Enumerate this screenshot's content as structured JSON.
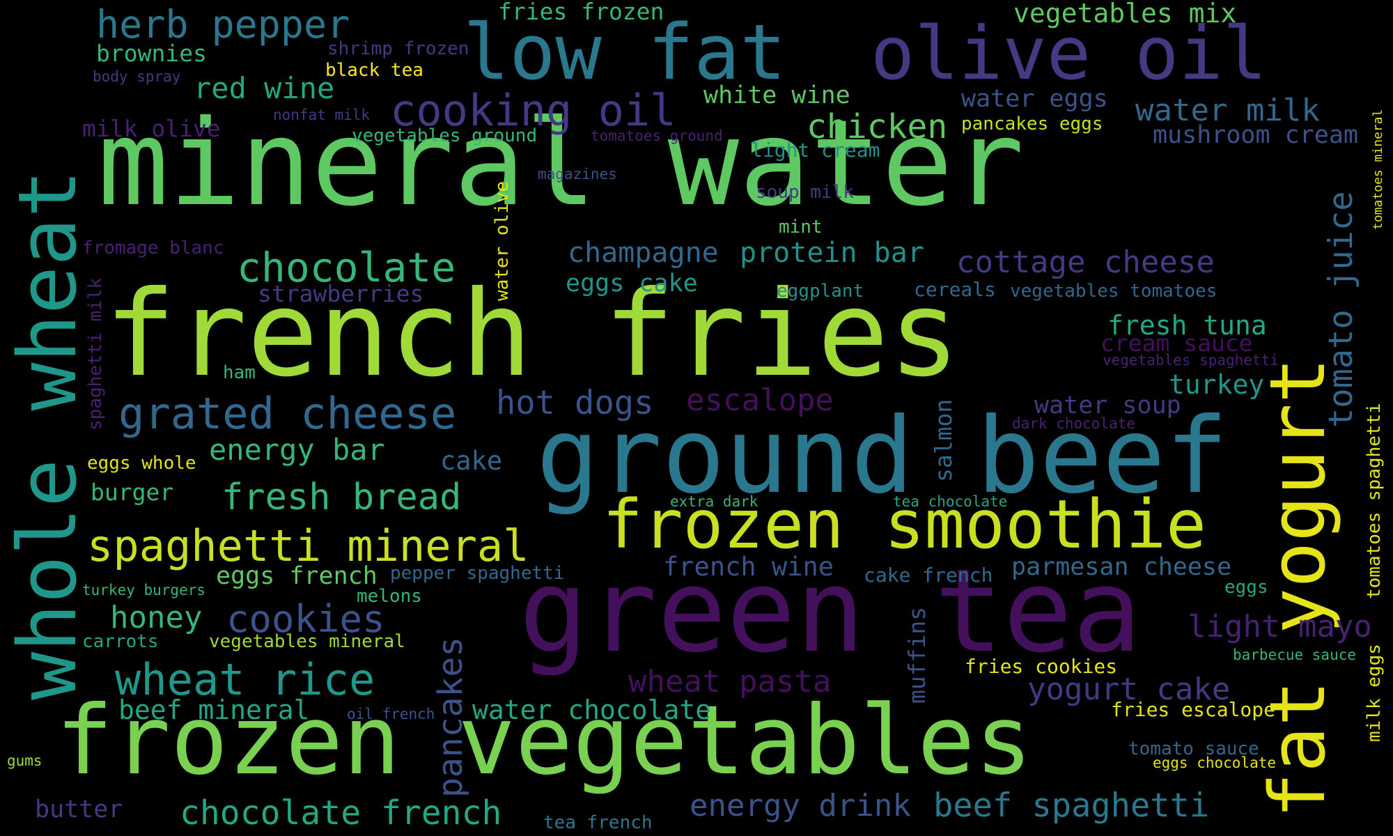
{
  "words": {
    "w1": "mineral water",
    "w2": "french fries",
    "w3": "ground beef",
    "w4": "green tea",
    "w5": "frozen vegetables",
    "w6": "whole wheat",
    "w7": "low fat",
    "w8": "olive oil",
    "w9": "frozen smoothie",
    "w10": "fat yogurt",
    "w11": "cooking oil",
    "w12": "chocolate",
    "w13": "grated cheese",
    "w14": "spaghetti mineral",
    "w15": "herb pepper",
    "w16": "fries frozen",
    "w17": "vegetables mix",
    "w18": "brownies",
    "w19": "shrimp frozen",
    "w20": "black tea",
    "w21": "body spray",
    "w22": "red wine",
    "w23": "white wine",
    "w24": "water eggs",
    "w25": "water milk",
    "w26": "chicken",
    "w27": "pancakes eggs",
    "w28": "nonfat milk",
    "w29": "milk olive",
    "w30": "vegetables ground",
    "w31": "tomatoes ground",
    "w32": "light cream",
    "w33": "mushroom cream",
    "w34": "magazines",
    "w35": "soup milk",
    "w36": "mint",
    "w37": "fromage blanc",
    "w38": "champagne",
    "w39": "protein bar",
    "w40": "cottage cheese",
    "w41": "strawberries",
    "w42": "eggs cake",
    "w43": "eggplant",
    "w44": "cereals",
    "w45": "vegetables tomatoes",
    "w46": "fresh tuna",
    "w47": "cream sauce",
    "w48": "vegetables spaghetti",
    "w49": "ham",
    "w50": "hot dogs",
    "w51": "escalope",
    "w52": "turkey",
    "w53": "water soup",
    "w54": "dark chocolate",
    "w55": "energy bar",
    "w56": "cake",
    "w57": "eggs whole",
    "w58": "burger",
    "w59": "fresh bread",
    "w60": "extra dark",
    "w61": "tea chocolate",
    "w62": "eggs french",
    "w63": "pepper spaghetti",
    "w64": "french wine",
    "w65": "cake french",
    "w66": "parmesan cheese",
    "w67": "turkey burgers",
    "w68": "melons",
    "w69": "eggs",
    "w70": "honey",
    "w71": "cookies",
    "w72": "carrots",
    "w73": "vegetables mineral",
    "w74": "light mayo",
    "w75": "barbecue sauce",
    "w76": "wheat rice",
    "w77": "wheat pasta",
    "w78": "fries cookies",
    "w79": "yogurt cake",
    "w80": "beef mineral",
    "w81": "oil french",
    "w82": "water chocolate",
    "w83": "fries escalope",
    "w84": "tomato sauce",
    "w85": "gums",
    "w86": "eggs chocolate",
    "w87": "butter",
    "w88": "chocolate french",
    "w89": "energy drink",
    "w90": "beef spaghetti",
    "w91": "tea french",
    "w92": "tomato juice",
    "w93": "tomatoes mineral",
    "w94": "tomatoes spaghetti",
    "w95": "milk eggs",
    "w96": "water olive",
    "w97": "spaghetti milk",
    "w98": "pancakes",
    "w99": "salmon",
    "w100": "muffins"
  },
  "colors": {
    "c1": "#5ec962",
    "c2": "#a0da39",
    "c3": "#2a788e",
    "c4": "#440f5b",
    "c5": "#7ad151",
    "c6": "#22a884",
    "c7": "#31688e",
    "c8": "#3b528b",
    "c9": "#c8e020",
    "c10": "#e5e419",
    "c11": "#fde725",
    "c12": "#443983",
    "c13": "#482173",
    "c14": "#35b779",
    "c15": "#21918c",
    "c16": "#1f988b"
  }
}
